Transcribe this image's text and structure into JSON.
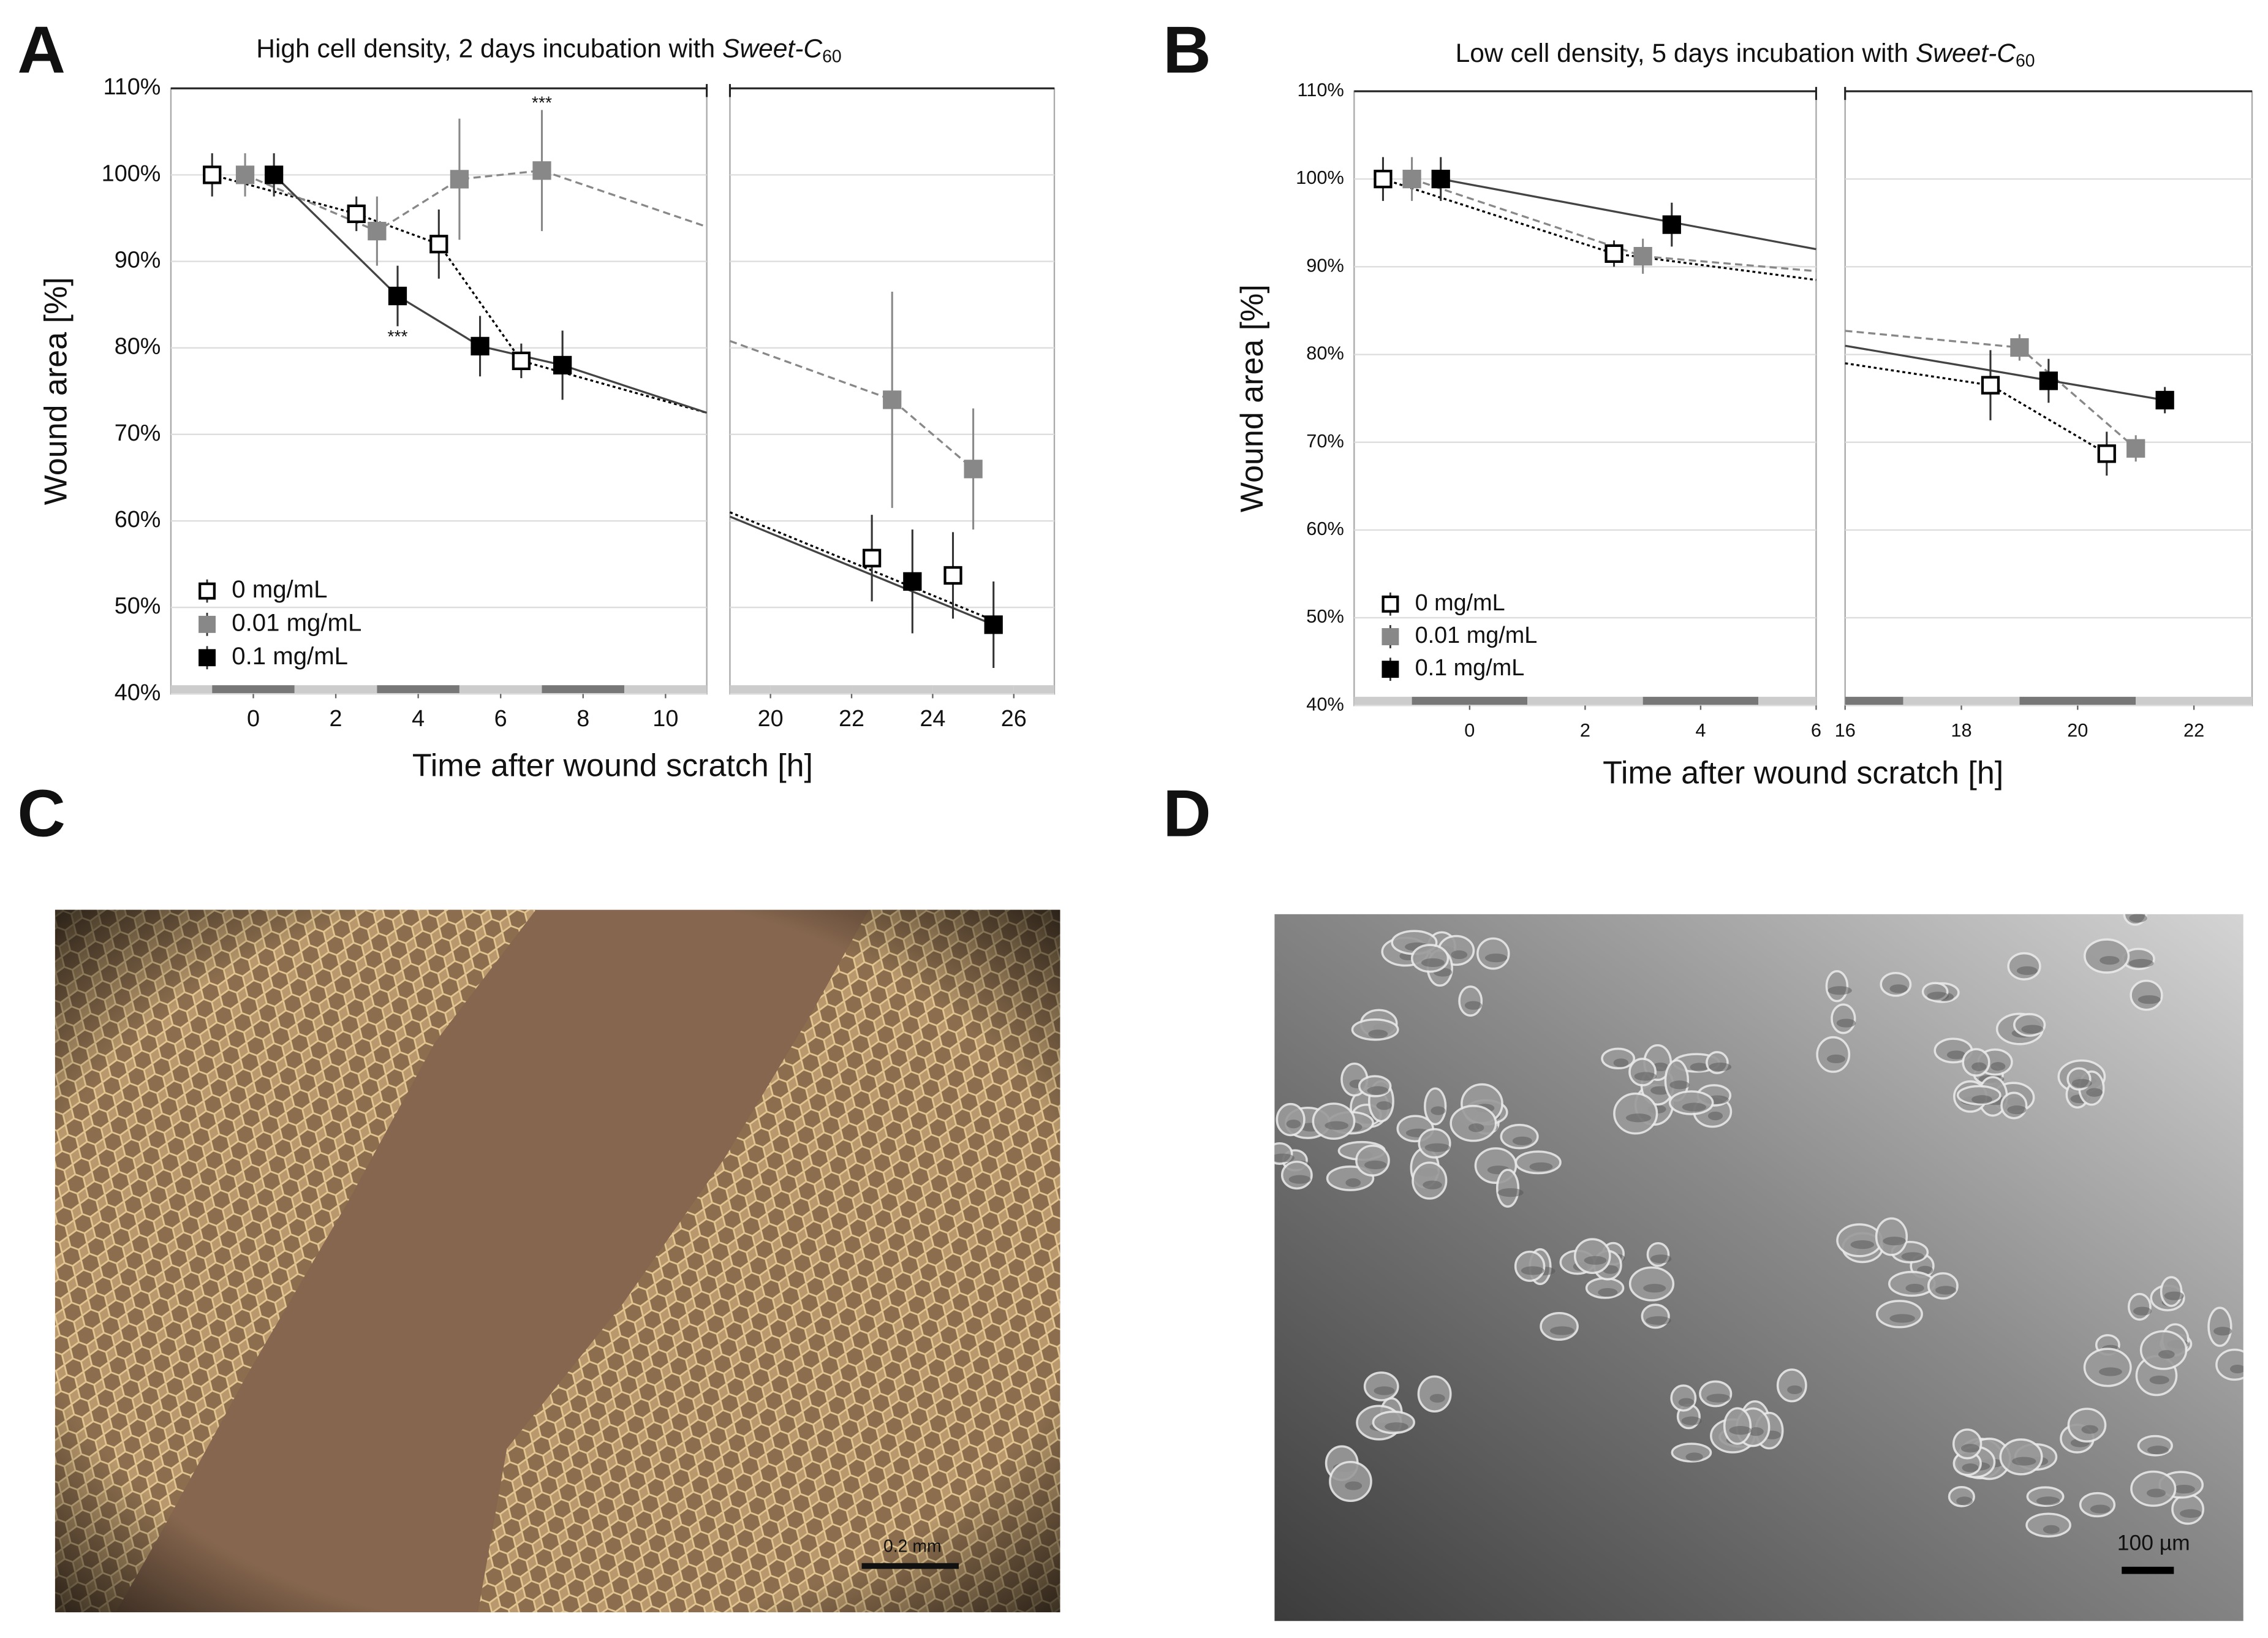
{
  "chart_data": [
    {
      "type": "line",
      "panel": "A",
      "title": {
        "text": "High cell density, 2 days incubation with",
        "compound": "Sweet-C",
        "subscript": "60"
      },
      "x_label": "Time after wound scratch [h]",
      "y_label": "Wound area [%]",
      "xlim": [
        -2,
        27
      ],
      "x_break": [
        11,
        19
      ],
      "xticks": [
        0,
        2,
        4,
        6,
        8,
        10,
        20,
        22,
        24,
        26
      ],
      "ylim": [
        40,
        110
      ],
      "yticks": [
        {
          "value": 40,
          "label": "40%"
        },
        {
          "value": 50,
          "label": "50%"
        },
        {
          "value": 60,
          "label": "60%"
        },
        {
          "value": 70,
          "label": "70%"
        },
        {
          "value": 80,
          "label": "80%"
        },
        {
          "value": 90,
          "label": "90%"
        },
        {
          "value": 100,
          "label": "100%"
        },
        {
          "value": 110,
          "label": "110%"
        }
      ],
      "grid": true,
      "legend": "lower left",
      "series": [
        {
          "name": "0 mg/mL",
          "color": "#000000",
          "marker": "open-square",
          "line_style": "dotted",
          "x": [
            -1,
            2.5,
            4.5,
            6.5,
            22.5,
            24.5
          ],
          "values": [
            100,
            95.5,
            92,
            78.5,
            55.7,
            53.7
          ],
          "errors": [
            2.5,
            2,
            4,
            2,
            5,
            5
          ],
          "fit_x": [
            -1,
            2.5,
            4.5,
            6.5,
            11,
            null,
            19,
            25.5
          ],
          "fit_y": [
            100,
            95.5,
            92,
            78.5,
            72.5,
            null,
            61,
            48.5
          ]
        },
        {
          "name": "0.01 mg/mL",
          "color": "#888888",
          "marker": "square",
          "line_style": "dashed",
          "x": [
            -0.2,
            3,
            5,
            7,
            23,
            25
          ],
          "values": [
            100,
            93.5,
            99.5,
            100.5,
            74,
            66
          ],
          "errors": [
            2.5,
            4,
            7,
            7,
            12.5,
            7
          ],
          "significance": [
            null,
            null,
            null,
            "***",
            null,
            null
          ],
          "significance_position": "above",
          "fit_x": [
            -0.2,
            3,
            5,
            7,
            11,
            null,
            19,
            23,
            25
          ],
          "fit_y": [
            100,
            93.5,
            99.5,
            100.5,
            94,
            null,
            80.8,
            74,
            66
          ]
        },
        {
          "name": "0.1 mg/mL",
          "color": "#000000",
          "marker": "square",
          "line_style": "solid",
          "x": [
            0.5,
            3.5,
            5.5,
            7.5,
            23.5,
            25.5
          ],
          "values": [
            100,
            86,
            80.2,
            78,
            53,
            48
          ],
          "errors": [
            2.5,
            3.5,
            3.5,
            4,
            6,
            5
          ],
          "significance": [
            null,
            "***",
            null,
            null,
            null,
            null
          ],
          "significance_position": "below",
          "fit_x": [
            0.5,
            3.5,
            5.5,
            7.5,
            11,
            null,
            19,
            25.5
          ],
          "fit_y": [
            100,
            86,
            80.2,
            78,
            72.5,
            null,
            60.5,
            48
          ]
        }
      ]
    },
    {
      "type": "line",
      "panel": "B",
      "title": {
        "text": "Low cell density, 5 days incubation with",
        "compound": "Sweet-C",
        "subscript": "60"
      },
      "x_label": "Time after wound scratch [h]",
      "y_label": "Wound area [%]",
      "xlim": [
        -2,
        23
      ],
      "x_break": [
        6,
        16
      ],
      "xticks": [
        0,
        2,
        4,
        6,
        16,
        18,
        20,
        22
      ],
      "ylim": [
        40,
        110
      ],
      "yticks": [
        {
          "value": 40,
          "label": "40%"
        },
        {
          "value": 50,
          "label": "50%"
        },
        {
          "value": 60,
          "label": "60%"
        },
        {
          "value": 70,
          "label": "70%"
        },
        {
          "value": 80,
          "label": "80%"
        },
        {
          "value": 90,
          "label": "90%"
        },
        {
          "value": 100,
          "label": "100%"
        },
        {
          "value": 110,
          "label": "110%"
        }
      ],
      "grid": true,
      "legend": "lower left",
      "series": [
        {
          "name": "0 mg/mL",
          "color": "#000000",
          "marker": "open-square",
          "line_style": "dotted",
          "x": [
            -1.5,
            2.5,
            18.5,
            20.5
          ],
          "values": [
            100,
            91.5,
            76.5,
            68.7
          ],
          "errors": [
            2.5,
            1.5,
            4,
            2.5
          ],
          "fit_x": [
            -1.5,
            2.5,
            6,
            null,
            16,
            18.5,
            20.5
          ],
          "fit_y": [
            100,
            91.5,
            88.5,
            null,
            79,
            76.5,
            68.7
          ]
        },
        {
          "name": "0.01 mg/mL",
          "color": "#888888",
          "marker": "square",
          "line_style": "dashed",
          "x": [
            -1,
            3,
            19,
            21
          ],
          "values": [
            100,
            91.2,
            80.8,
            69.3
          ],
          "errors": [
            2.5,
            2,
            1.5,
            1.5
          ],
          "fit_x": [
            -1,
            3,
            6,
            null,
            16,
            19,
            21
          ],
          "fit_y": [
            100,
            91.2,
            89.5,
            null,
            82.7,
            80.8,
            69.3
          ]
        },
        {
          "name": "0.1 mg/mL",
          "color": "#000000",
          "marker": "square",
          "line_style": "solid",
          "x": [
            -0.5,
            3.5,
            19.5,
            21.5
          ],
          "values": [
            100,
            94.8,
            77,
            74.8
          ],
          "errors": [
            2.5,
            2.5,
            2.5,
            1.5
          ],
          "fit_x": [
            -0.5,
            6,
            null,
            16,
            21.5
          ],
          "fit_y": [
            100,
            92,
            null,
            81,
            74.8
          ]
        }
      ]
    }
  ],
  "images": [
    {
      "panel": "C",
      "scale_bar": "0.2 mm"
    },
    {
      "panel": "D",
      "scale_bar": "100 µm"
    }
  ]
}
